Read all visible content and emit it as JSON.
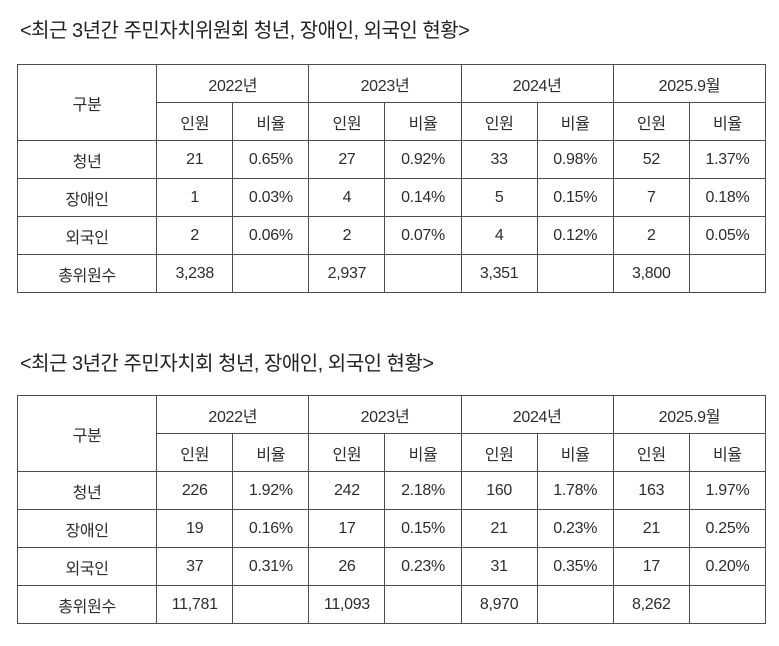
{
  "page": {
    "background": "#ffffff",
    "text_color": "#2d2d2d",
    "border_color": "#4d4d4d"
  },
  "tables": [
    {
      "title": "<최근 3년간 주민자치위원회 청년, 장애인, 외국인 현황>",
      "header": {
        "category": "구분",
        "year_groups": [
          "2022년",
          "2023년",
          "2024년",
          "2025.9월"
        ],
        "sub_headers": [
          "인원",
          "비율"
        ]
      },
      "rows": [
        {
          "label": "청년",
          "values": [
            "21",
            "0.65%",
            "27",
            "0.92%",
            "33",
            "0.98%",
            "52",
            "1.37%"
          ]
        },
        {
          "label": "장애인",
          "values": [
            "1",
            "0.03%",
            "4",
            "0.14%",
            "5",
            "0.15%",
            "7",
            "0.18%"
          ]
        },
        {
          "label": "외국인",
          "values": [
            "2",
            "0.06%",
            "2",
            "0.07%",
            "4",
            "0.12%",
            "2",
            "0.05%"
          ]
        },
        {
          "label": "총위원수",
          "values": [
            "3,238",
            "",
            "2,937",
            "",
            "3,351",
            "",
            "3,800",
            ""
          ]
        }
      ]
    },
    {
      "title": "<최근 3년간 주민자치회 청년, 장애인, 외국인 현황>",
      "header": {
        "category": "구분",
        "year_groups": [
          "2022년",
          "2023년",
          "2024년",
          "2025.9월"
        ],
        "sub_headers": [
          "인원",
          "비율"
        ]
      },
      "rows": [
        {
          "label": "청년",
          "values": [
            "226",
            "1.92%",
            "242",
            "2.18%",
            "160",
            "1.78%",
            "163",
            "1.97%"
          ]
        },
        {
          "label": "장애인",
          "values": [
            "19",
            "0.16%",
            "17",
            "0.15%",
            "21",
            "0.23%",
            "21",
            "0.25%"
          ]
        },
        {
          "label": "외국인",
          "values": [
            "37",
            "0.31%",
            "26",
            "0.23%",
            "31",
            "0.35%",
            "17",
            "0.20%"
          ]
        },
        {
          "label": "총위원수",
          "values": [
            "11,781",
            "",
            "11,093",
            "",
            "8,970",
            "",
            "8,262",
            ""
          ]
        }
      ]
    }
  ]
}
